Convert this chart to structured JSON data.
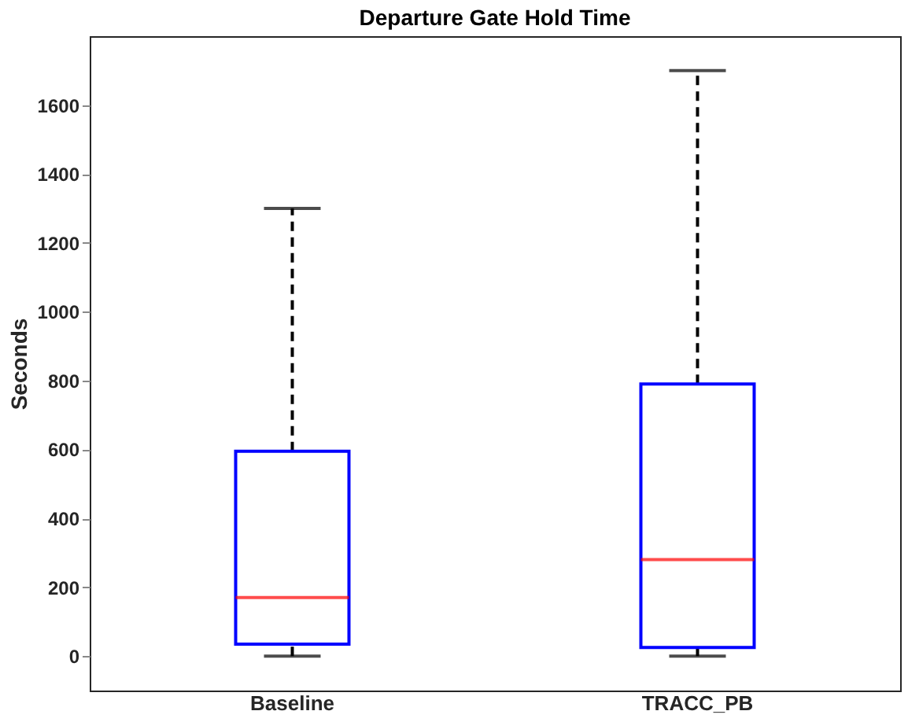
{
  "chart_data": {
    "type": "box",
    "title": "Departure Gate Hold Time",
    "ylabel": "Seconds",
    "categories": [
      "Baseline",
      "TRACC_PB"
    ],
    "boxes": [
      {
        "low": 0,
        "q1": 35,
        "median": 170,
        "q3": 595,
        "high": 1300
      },
      {
        "low": 0,
        "q1": 25,
        "median": 280,
        "q3": 790,
        "high": 1700
      }
    ],
    "ylim": [
      -100,
      1800
    ],
    "yticks": [
      0,
      200,
      400,
      600,
      800,
      1000,
      1200,
      1400,
      1600
    ],
    "grid": false
  }
}
